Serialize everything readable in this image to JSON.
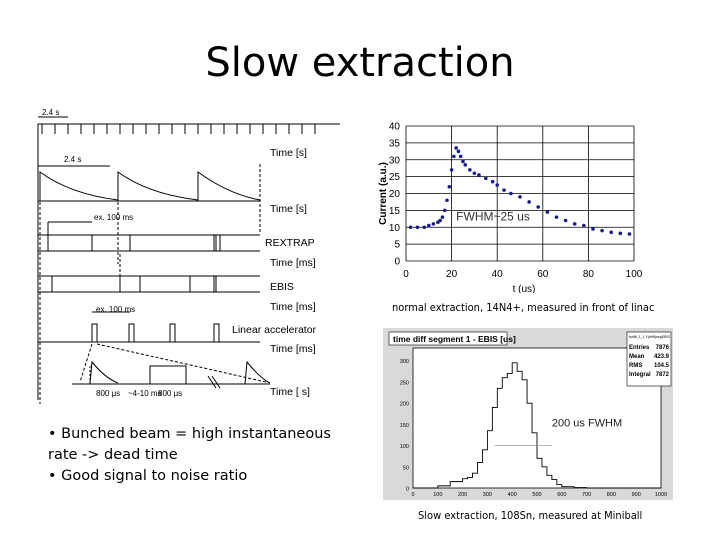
{
  "slide": {
    "title": "Slow extraction",
    "bullets": [
      "• Bunched beam  = high instantaneous rate -> dead time",
      "• Good signal to noise ratio"
    ],
    "caption_top": "normal extraction, 14N4+, measured in front of linac",
    "caption_bottom": "Slow extraction, 108Sn, measured at Miniball"
  },
  "timing_diagram": {
    "period_top": "2.4 s",
    "period_mid": "2.4 s",
    "row_labels": [
      "Time [s]",
      "Time [s]",
      "REXTRAP",
      "Time [ms]",
      "EBIS",
      "Time [ms]",
      "Linear accelerator",
      "Time [ms]",
      "Time [  s]"
    ],
    "ex_labels": [
      "ex. 100 ms",
      "ex. 100 ms"
    ],
    "bottom_labels": [
      "800 µs",
      "~4-10 ms",
      "800 µs"
    ]
  },
  "chart_data": [
    {
      "type": "scatter",
      "title": "",
      "xlabel": "t (us)",
      "ylabel": "Current (a.u.)",
      "xlim": [
        0,
        100
      ],
      "ylim": [
        0,
        40
      ],
      "xticks": [
        0,
        20,
        40,
        60,
        80,
        100
      ],
      "yticks": [
        0,
        5,
        10,
        15,
        20,
        25,
        30,
        35,
        40
      ],
      "grid": true,
      "annotation": "FWHM~25 us",
      "series": [
        {
          "color": "#1a1a8c",
          "x": [
            2,
            5,
            8,
            10,
            12,
            14,
            15,
            16,
            17,
            18,
            19,
            20,
            21,
            22,
            23,
            24,
            25,
            26,
            28,
            30,
            32,
            35,
            38,
            40,
            43,
            46,
            50,
            54,
            58,
            62,
            66,
            70,
            74,
            78,
            82,
            86,
            90,
            94,
            98
          ],
          "y": [
            10,
            10,
            10,
            10.5,
            11,
            11.5,
            12,
            13,
            15,
            18,
            22,
            27,
            31,
            33.5,
            32.5,
            31,
            29.5,
            28.5,
            27,
            26,
            25.5,
            24.5,
            23.5,
            22.5,
            21,
            20,
            19,
            17.5,
            16,
            14.5,
            13,
            12,
            11,
            10.5,
            9.5,
            9,
            8.5,
            8.2,
            8
          ]
        }
      ]
    },
    {
      "type": "line",
      "title": "time diff segment 1 - EBIS [us]",
      "xlabel": "",
      "ylabel": "",
      "xlim": [
        0,
        1000
      ],
      "ylim": [
        0,
        330
      ],
      "xticks": [
        0,
        100,
        200,
        300,
        400,
        500,
        600,
        700,
        800,
        900,
        1000
      ],
      "yticks": [
        0,
        50,
        100,
        150,
        200,
        250,
        300
      ],
      "annotation": "200 us FWHM",
      "stats": {
        "name": "tsdiff_1_1 Y(tdiff)segEBIS",
        "rows": [
          [
            "Entries",
            "7876"
          ],
          [
            "Mean",
            "423.9"
          ],
          [
            "RMS",
            "104.5"
          ],
          [
            "Integral",
            "7872"
          ]
        ]
      },
      "series": [
        {
          "color": "#000000",
          "x": [
            0,
            100,
            150,
            200,
            220,
            240,
            260,
            280,
            300,
            320,
            340,
            360,
            380,
            400,
            420,
            440,
            460,
            480,
            500,
            520,
            540,
            560,
            580,
            600,
            650,
            700,
            800,
            900,
            1000
          ],
          "y": [
            0,
            5,
            15,
            22,
            25,
            35,
            60,
            90,
            135,
            190,
            235,
            260,
            270,
            295,
            275,
            255,
            200,
            130,
            70,
            50,
            30,
            20,
            8,
            3,
            1,
            0,
            0,
            0,
            0
          ]
        }
      ]
    }
  ]
}
